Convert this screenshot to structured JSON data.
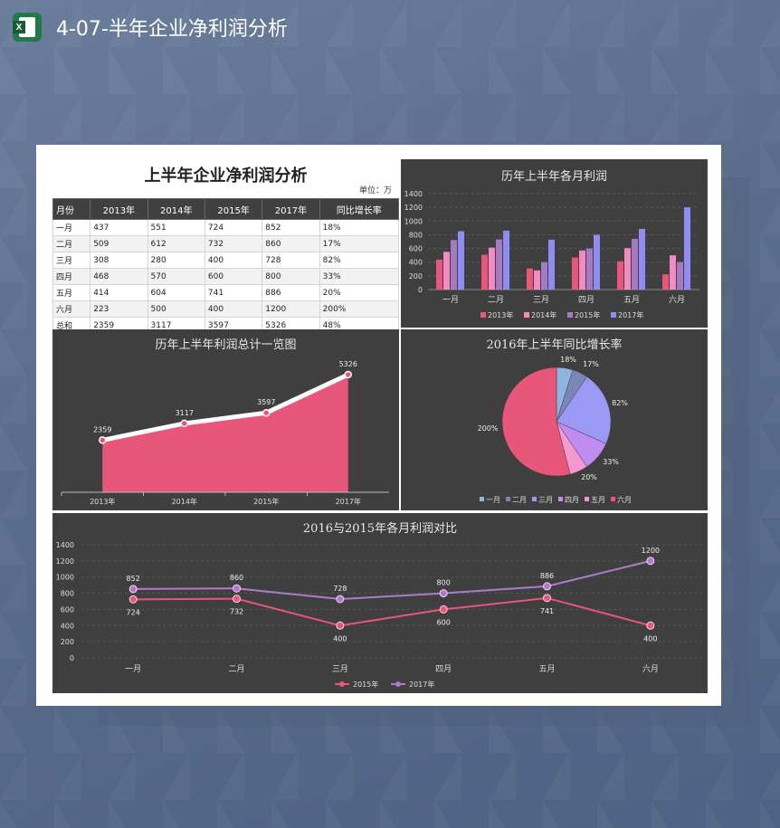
{
  "window": {
    "title": "4-07-半年企业净利润分析",
    "app_icon": "excel-icon"
  },
  "table": {
    "title": "上半年企业净利润分析",
    "unit": "单位：万",
    "headers": [
      "月份",
      "2013年",
      "2014年",
      "2015年",
      "2017年",
      "同比增长率"
    ],
    "rows": [
      [
        "一月",
        "437",
        "551",
        "724",
        "852",
        "18%"
      ],
      [
        "二月",
        "509",
        "612",
        "732",
        "860",
        "17%"
      ],
      [
        "三月",
        "308",
        "280",
        "400",
        "728",
        "82%"
      ],
      [
        "四月",
        "468",
        "570",
        "600",
        "800",
        "33%"
      ],
      [
        "五月",
        "414",
        "604",
        "741",
        "886",
        "20%"
      ],
      [
        "六月",
        "223",
        "500",
        "400",
        "1200",
        "200%"
      ],
      [
        "总和",
        "2359",
        "3117",
        "3597",
        "5326",
        "48%"
      ]
    ]
  },
  "colors": {
    "c2013": "#e8577a",
    "c2014": "#f28ac4",
    "c2015": "#a67ac2",
    "c2017": "#8f8cf2",
    "panel": "#3f3f3f"
  },
  "chart_data": [
    {
      "type": "bar",
      "title": "历年上半年各月利润",
      "categories": [
        "一月",
        "二月",
        "三月",
        "四月",
        "五月",
        "六月"
      ],
      "series": [
        {
          "name": "2013年",
          "values": [
            437,
            509,
            308,
            468,
            414,
            223
          ]
        },
        {
          "name": "2014年",
          "values": [
            551,
            612,
            280,
            570,
            604,
            500
          ]
        },
        {
          "name": "2015年",
          "values": [
            724,
            732,
            400,
            600,
            741,
            400
          ]
        },
        {
          "name": "2017年",
          "values": [
            852,
            860,
            728,
            800,
            886,
            1200
          ]
        }
      ],
      "ylim": [
        0,
        1400
      ],
      "yticks": [
        0,
        200,
        400,
        600,
        800,
        1000,
        1200,
        1400
      ],
      "grid": true,
      "legend": "bottom"
    },
    {
      "type": "area",
      "title": "历年上半年利润总计一览图",
      "categories": [
        "2013年",
        "2014年",
        "2015年",
        "2017年"
      ],
      "values": [
        2359,
        3117,
        3597,
        5326
      ],
      "labels": [
        "2359",
        "3117",
        "3597",
        "5326"
      ]
    },
    {
      "type": "pie",
      "title": "2016年上半年同比增长率",
      "labels": [
        "一月",
        "二月",
        "三月",
        "四月",
        "五月",
        "六月"
      ],
      "values": [
        18,
        17,
        82,
        33,
        20,
        200
      ],
      "data_labels": [
        "18%",
        "17%",
        "82%",
        "33%",
        "20%",
        "200%"
      ],
      "colors": [
        "#8fb4e0",
        "#7a86b8",
        "#9a9af5",
        "#c08cf0",
        "#f29ad0",
        "#e8577a"
      ],
      "legend": "bottom"
    },
    {
      "type": "line",
      "title": "2016与2015年各月利润对比",
      "categories": [
        "一月",
        "二月",
        "三月",
        "四月",
        "五月",
        "六月"
      ],
      "series": [
        {
          "name": "2015年",
          "values": [
            724,
            732,
            400,
            600,
            741,
            400
          ]
        },
        {
          "name": "2017年",
          "values": [
            852,
            860,
            728,
            800,
            886,
            1200
          ]
        }
      ],
      "ylim": [
        0,
        1400
      ],
      "yticks": [
        0,
        200,
        400,
        600,
        800,
        1000,
        1200,
        1400
      ],
      "grid": true,
      "legend": "bottom"
    }
  ]
}
